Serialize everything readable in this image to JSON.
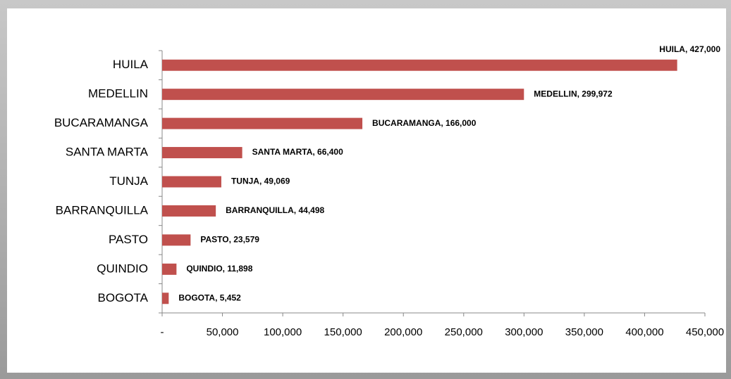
{
  "chart_data": {
    "type": "bar",
    "orientation": "horizontal",
    "categories": [
      "HUILA",
      "MEDELLIN",
      "BUCARAMANGA",
      "SANTA MARTA",
      "TUNJA",
      "BARRANQUILLA",
      "PASTO",
      "QUINDIO",
      "BOGOTA"
    ],
    "values": [
      427000,
      299972,
      166000,
      66400,
      49069,
      44498,
      23579,
      11898,
      5452
    ],
    "value_labels": [
      "HUILA, 427,000",
      "MEDELLIN, 299,972",
      "BUCARAMANGA, 166,000",
      "SANTA MARTA, 66,400",
      "TUNJA, 49,069",
      "BARRANQUILLA, 44,498",
      "PASTO, 23,579",
      "QUINDIO, 11,898",
      "BOGOTA, 5,452"
    ],
    "color": "#c0504d",
    "xlim": [
      0,
      450000
    ],
    "xticks": [
      {
        "value": 0,
        "label": "-"
      },
      {
        "value": 50000,
        "label": "50,000"
      },
      {
        "value": 100000,
        "label": "100,000"
      },
      {
        "value": 150000,
        "label": "150,000"
      },
      {
        "value": 200000,
        "label": "200,000"
      },
      {
        "value": 250000,
        "label": "250,000"
      },
      {
        "value": 300000,
        "label": "300,000"
      },
      {
        "value": 350000,
        "label": "350,000"
      },
      {
        "value": 400000,
        "label": "400,000"
      },
      {
        "value": 450000,
        "label": "450,000"
      }
    ],
    "grid": false
  }
}
